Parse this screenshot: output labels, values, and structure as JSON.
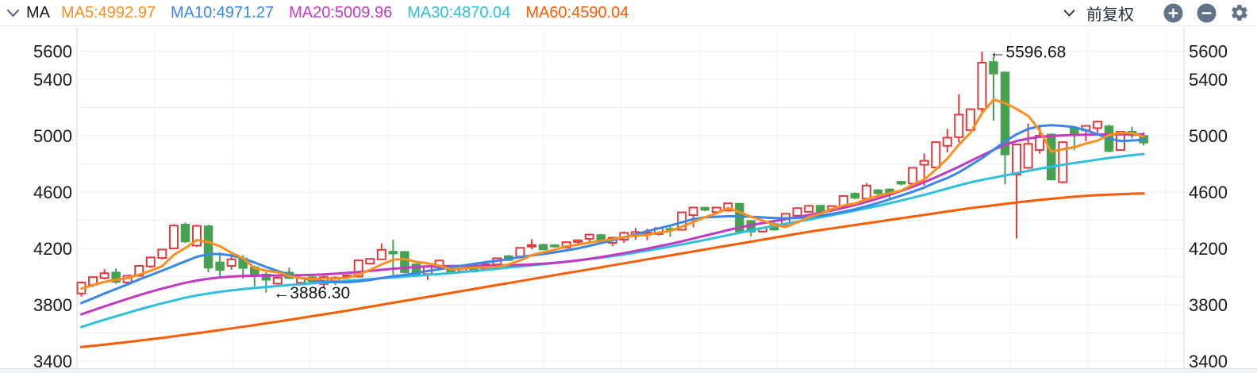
{
  "header": {
    "indicator_label": "MA",
    "adjust_label": "前复权",
    "legend": [
      {
        "label": "MA5:4992.97",
        "color": "#ff8e1f"
      },
      {
        "label": "MA10:4971.27",
        "color": "#3a87e8"
      },
      {
        "label": "MA20:5009.96",
        "color": "#c23ac2"
      },
      {
        "label": "MA30:4870.04",
        "color": "#2ec0dc"
      },
      {
        "label": "MA60:4590.04",
        "color": "#ff5c00"
      }
    ],
    "icon_color": "#63748a"
  },
  "chart_data": {
    "type": "candlestick",
    "title": "MA",
    "up_color": "#e23a3c",
    "down_color": "#46a251",
    "grid_color": "#eceef0",
    "vgrid_color": "#f2f3f5",
    "axis_border_color": "#d8dadc",
    "axis_text_color": "#17191b",
    "annotation_color": "#121416",
    "y_axis": {
      "min": 3400,
      "max": 5600,
      "grid_step": 200,
      "labels": [
        {
          "text": "5600",
          "price": 5600
        },
        {
          "text": "5400",
          "price": 5400
        },
        {
          "text": "5000",
          "price": 5000
        },
        {
          "text": "4600",
          "price": 4600
        },
        {
          "text": "4200",
          "price": 4200
        },
        {
          "text": "3800",
          "price": 3800
        },
        {
          "text": "3400",
          "price": 3400
        }
      ]
    },
    "annotations": [
      {
        "type": "low",
        "candle_index": 17,
        "price": 3886.3,
        "text": "←3886.30"
      },
      {
        "type": "high",
        "candle_index": 79,
        "price": 5596.68,
        "text": "←5596.68"
      }
    ],
    "candles": [
      [
        3880,
        3966,
        3858,
        3958
      ],
      [
        3942,
        4002,
        3926,
        3996
      ],
      [
        3990,
        4052,
        3980,
        4024
      ],
      [
        4030,
        4058,
        3948,
        3962
      ],
      [
        3958,
        4012,
        3936,
        4006
      ],
      [
        4006,
        4080,
        3998,
        4076
      ],
      [
        4072,
        4142,
        4062,
        4136
      ],
      [
        4132,
        4196,
        4122,
        4192
      ],
      [
        4200,
        4372,
        4194,
        4362
      ],
      [
        4370,
        4384,
        4238,
        4248
      ],
      [
        4220,
        4368,
        4210,
        4360
      ],
      [
        4358,
        4368,
        4030,
        4062
      ],
      [
        4102,
        4172,
        3986,
        4046
      ],
      [
        4076,
        4142,
        4050,
        4122
      ],
      [
        4130,
        4152,
        3986,
        4060
      ],
      [
        4066,
        4078,
        3928,
        4004
      ],
      [
        4016,
        4032,
        3886.3,
        3976
      ],
      [
        3950,
        4004,
        3938,
        3992
      ],
      [
        4030,
        4064,
        3984,
        3988
      ],
      [
        3956,
        3998,
        3942,
        3990
      ],
      [
        3996,
        4008,
        3960,
        3964
      ],
      [
        3948,
        4012,
        3918,
        3996
      ],
      [
        3968,
        4002,
        3942,
        3992
      ],
      [
        3998,
        4014,
        3990,
        4008
      ],
      [
        4000,
        4120,
        3996,
        4115
      ],
      [
        4092,
        4130,
        4086,
        4126
      ],
      [
        4122,
        4236,
        4118,
        4190
      ],
      [
        4178,
        4262,
        4004,
        4162
      ],
      [
        4176,
        4182,
        4024,
        4030
      ],
      [
        4088,
        4094,
        4000,
        4012
      ],
      [
        4018,
        4078,
        3976,
        4074
      ],
      [
        4066,
        4118,
        4058,
        4114
      ],
      [
        4072,
        4080,
        4026,
        4032
      ],
      [
        4038,
        4064,
        4024,
        4058
      ],
      [
        4068,
        4074,
        4028,
        4036
      ],
      [
        4058,
        4094,
        4050,
        4088
      ],
      [
        4086,
        4134,
        4080,
        4130
      ],
      [
        4146,
        4154,
        4110,
        4116
      ],
      [
        4142,
        4208,
        4138,
        4204
      ],
      [
        4218,
        4266,
        4194,
        4224
      ],
      [
        4226,
        4234,
        4186,
        4192
      ],
      [
        4224,
        4230,
        4206,
        4212
      ],
      [
        4206,
        4250,
        4200,
        4244
      ],
      [
        4246,
        4262,
        4228,
        4258
      ],
      [
        4268,
        4304,
        4248,
        4298
      ],
      [
        4296,
        4302,
        4250,
        4256
      ],
      [
        4240,
        4282,
        4216,
        4276
      ],
      [
        4262,
        4320,
        4240,
        4310
      ],
      [
        4290,
        4346,
        4262,
        4316
      ],
      [
        4300,
        4340,
        4258,
        4312
      ],
      [
        4302,
        4348,
        4292,
        4344
      ],
      [
        4340,
        4364,
        4282,
        4336
      ],
      [
        4332,
        4458,
        4326,
        4456
      ],
      [
        4436,
        4494,
        4350,
        4490
      ],
      [
        4490,
        4496,
        4464,
        4472
      ],
      [
        4458,
        4494,
        4452,
        4490
      ],
      [
        4468,
        4524,
        4462,
        4520
      ],
      [
        4518,
        4524,
        4314,
        4320
      ],
      [
        4396,
        4402,
        4284,
        4318
      ],
      [
        4320,
        4348,
        4314,
        4344
      ],
      [
        4374,
        4396,
        4326,
        4332
      ],
      [
        4360,
        4450,
        4354,
        4446
      ],
      [
        4432,
        4490,
        4426,
        4486
      ],
      [
        4460,
        4508,
        4454,
        4502
      ],
      [
        4504,
        4510,
        4456,
        4462
      ],
      [
        4478,
        4506,
        4462,
        4500
      ],
      [
        4494,
        4576,
        4488,
        4572
      ],
      [
        4590,
        4598,
        4548,
        4558
      ],
      [
        4554,
        4664,
        4548,
        4646
      ],
      [
        4614,
        4622,
        4560,
        4590
      ],
      [
        4620,
        4626,
        4542,
        4596
      ],
      [
        4674,
        4680,
        4648,
        4658
      ],
      [
        4660,
        4776,
        4654,
        4772
      ],
      [
        4794,
        4874,
        4646,
        4822
      ],
      [
        4774,
        4960,
        4768,
        4954
      ],
      [
        4928,
        5048,
        4882,
        4986
      ],
      [
        4990,
        5294,
        4952,
        5150
      ],
      [
        5040,
        5194,
        5034,
        5188
      ],
      [
        5190,
        5596.68,
        5150,
        5518
      ],
      [
        5524,
        5562,
        5106,
        5440
      ],
      [
        5450,
        5456,
        4654,
        4866
      ],
      [
        4724,
        4942,
        4270,
        4938
      ],
      [
        4772,
        5086,
        4764,
        4942
      ],
      [
        4898,
        5078,
        4872,
        5000
      ],
      [
        5010,
        5016,
        4682,
        4688
      ],
      [
        4670,
        4958,
        4662,
        4954
      ],
      [
        5058,
        5068,
        4898,
        5012
      ],
      [
        5038,
        5076,
        4960,
        5070
      ],
      [
        5054,
        5108,
        5022,
        5100
      ],
      [
        5068,
        5078,
        4882,
        4890
      ],
      [
        4898,
        5034,
        4892,
        5028
      ],
      [
        5030,
        5064,
        4980,
        5002
      ],
      [
        5000,
        5024,
        4930,
        4950
      ]
    ],
    "ma_lines": [
      {
        "name": "MA60",
        "color": "#ff5c00",
        "values": [
          3500,
          3508,
          3517,
          3526,
          3535,
          3545,
          3555,
          3565,
          3576,
          3587,
          3598,
          3609,
          3620,
          3632,
          3644,
          3656,
          3668,
          3680,
          3693,
          3706,
          3719,
          3732,
          3745,
          3758,
          3772,
          3786,
          3800,
          3814,
          3828,
          3842,
          3856,
          3870,
          3884,
          3898,
          3912,
          3926,
          3940,
          3954,
          3968,
          3982,
          3996,
          4010,
          4024,
          4038,
          4052,
          4066,
          4080,
          4094,
          4108,
          4122,
          4136,
          4150,
          4164,
          4178,
          4192,
          4206,
          4220,
          4234,
          4248,
          4262,
          4276,
          4290,
          4304,
          4318,
          4330,
          4342,
          4354,
          4366,
          4378,
          4390,
          4402,
          4414,
          4426,
          4438,
          4450,
          4462,
          4474,
          4486,
          4496,
          4506,
          4516,
          4526,
          4535,
          4544,
          4552,
          4560,
          4567,
          4573,
          4578,
          4582,
          4585,
          4588,
          4590
        ]
      },
      {
        "name": "MA30",
        "color": "#2ec0dc",
        "values": [
          3642,
          3668,
          3694,
          3718,
          3742,
          3766,
          3788,
          3810,
          3830,
          3850,
          3866,
          3880,
          3892,
          3902,
          3911,
          3919,
          3926,
          3933,
          3940,
          3946,
          3952,
          3958,
          3964,
          3970,
          3976,
          3982,
          3988,
          3994,
          4000,
          4006,
          4012,
          4018,
          4025,
          4032,
          4040,
          4048,
          4056,
          4064,
          4072,
          4080,
          4088,
          4096,
          4105,
          4114,
          4124,
          4134,
          4145,
          4157,
          4170,
          4184,
          4198,
          4213,
          4228,
          4244,
          4260,
          4277,
          4294,
          4311,
          4328,
          4345,
          4360,
          4375,
          4390,
          4405,
          4420,
          4436,
          4452,
          4468,
          4485,
          4502,
          4520,
          4540,
          4560,
          4580,
          4602,
          4625,
          4648,
          4668,
          4686,
          4702,
          4718,
          4734,
          4750,
          4766,
          4780,
          4794,
          4806,
          4818,
          4830,
          4842,
          4852,
          4862,
          4870
        ]
      },
      {
        "name": "MA20",
        "color": "#c23ac2",
        "values": [
          3732,
          3760,
          3788,
          3815,
          3842,
          3868,
          3892,
          3915,
          3936,
          3956,
          3972,
          3985,
          3994,
          4000,
          4004,
          4006,
          4007,
          4008,
          4009,
          4010,
          4012,
          4015,
          4020,
          4026,
          4032,
          4040,
          4048,
          4056,
          4062,
          4068,
          4072,
          4074,
          4075,
          4076,
          4076,
          4077,
          4078,
          4080,
          4083,
          4087,
          4092,
          4098,
          4106,
          4115,
          4126,
          4138,
          4152,
          4166,
          4182,
          4198,
          4215,
          4232,
          4250,
          4270,
          4290,
          4310,
          4330,
          4348,
          4365,
          4380,
          4394,
          4408,
          4422,
          4437,
          4453,
          4470,
          4488,
          4508,
          4530,
          4554,
          4580,
          4608,
          4638,
          4670,
          4705,
          4742,
          4780,
          4820,
          4860,
          4900,
          4935,
          4962,
          4980,
          4992,
          4998,
          5002,
          5005,
          5007,
          5008,
          5009,
          5010,
          5010,
          5010
        ]
      },
      {
        "name": "MA10",
        "color": "#3a87e8",
        "values": [
          3812,
          3845,
          3880,
          3912,
          3945,
          3980,
          4010,
          4042,
          4075,
          4108,
          4140,
          4160,
          4160,
          4150,
          4128,
          4100,
          4068,
          4040,
          4012,
          3990,
          3975,
          3966,
          3960,
          3960,
          3966,
          3975,
          3990,
          4002,
          4012,
          4025,
          4040,
          4052,
          4066,
          4078,
          4090,
          4102,
          4112,
          4125,
          4138,
          4150,
          4160,
          4172,
          4186,
          4200,
          4218,
          4238,
          4258,
          4278,
          4300,
          4322,
          4342,
          4362,
          4385,
          4408,
          4420,
          4425,
          4428,
          4428,
          4425,
          4420,
          4416,
          4414,
          4416,
          4422,
          4432,
          4445,
          4460,
          4478,
          4500,
          4522,
          4548,
          4575,
          4602,
          4632,
          4668,
          4700,
          4740,
          4790,
          4840,
          4900,
          4960,
          5010,
          5048,
          5068,
          5075,
          5070,
          5060,
          5040,
          5010,
          4980,
          4962,
          4966,
          4971
        ]
      },
      {
        "name": "MA5",
        "color": "#ff8e1f",
        "values": [
          3915,
          3940,
          3962,
          3978,
          3989,
          4013,
          4041,
          4074,
          4154,
          4203,
          4260,
          4245,
          4216,
          4168,
          4130,
          4059,
          4042,
          4031,
          4004,
          3990,
          3982,
          3986,
          3986,
          3990,
          4015,
          4047,
          4086,
          4120,
          4125,
          4104,
          4094,
          4078,
          4052,
          4058,
          4063,
          4066,
          4069,
          4086,
          4115,
          4152,
          4173,
          4190,
          4215,
          4226,
          4241,
          4254,
          4266,
          4280,
          4291,
          4294,
          4312,
          4324,
          4353,
          4388,
          4420,
          4449,
          4486,
          4458,
          4424,
          4398,
          4367,
          4352,
          4385,
          4422,
          4446,
          4479,
          4504,
          4519,
          4548,
          4573,
          4592,
          4610,
          4652,
          4688,
          4760,
          4838,
          4937,
          5020,
          5159,
          5256,
          5232,
          5190,
          5141,
          5037,
          4887,
          4904,
          4919,
          4945,
          4965,
          5005,
          5020,
          5018,
          4994
        ]
      }
    ]
  }
}
